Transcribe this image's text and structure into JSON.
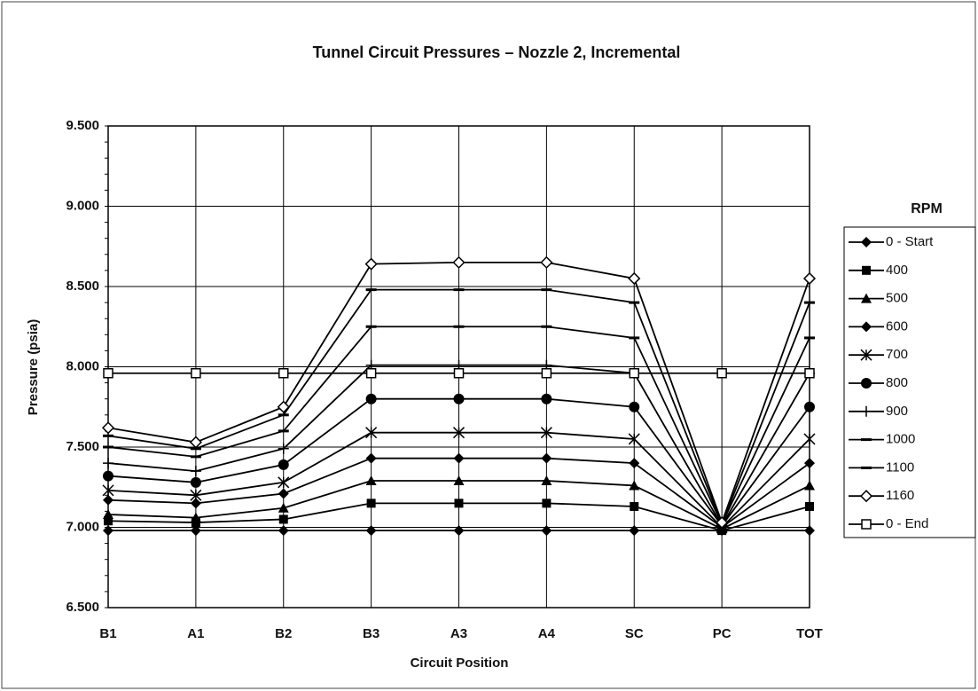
{
  "chart_data": {
    "type": "line",
    "title": "Tunnel Circuit Pressures – Nozzle 2, Incremental",
    "x_label": "Circuit Position",
    "y_label": "Pressure (psia)",
    "legend_title": "RPM",
    "legend": "right",
    "grid": true,
    "categories": [
      "B1",
      "A1",
      "B2",
      "B3",
      "A3",
      "A4",
      "SC",
      "PC",
      "TOT"
    ],
    "ylim": [
      6.5,
      9.5
    ],
    "yticks": [
      {
        "value": 6.5,
        "label": "6.500"
      },
      {
        "value": 7,
        "label": "7.000"
      },
      {
        "value": 7.5,
        "label": "7.500"
      },
      {
        "value": 8,
        "label": "8.000"
      },
      {
        "value": 8.5,
        "label": "8.500"
      },
      {
        "value": 9,
        "label": "9.000"
      },
      {
        "value": 9.5,
        "label": "9.500"
      }
    ],
    "series": [
      {
        "name": "0 - Start",
        "color": "#000000",
        "marker": "diamond",
        "values": [
          6.98,
          6.98,
          6.98,
          6.98,
          6.98,
          6.98,
          6.98,
          6.98,
          6.98
        ]
      },
      {
        "name": "400",
        "color": "#000000",
        "marker": "square",
        "values": [
          7.04,
          7.03,
          7.05,
          7.15,
          7.15,
          7.15,
          7.13,
          6.98,
          7.13
        ]
      },
      {
        "name": "500",
        "color": "#000000",
        "marker": "triangle",
        "values": [
          7.08,
          7.06,
          7.12,
          7.29,
          7.29,
          7.29,
          7.26,
          6.99,
          7.26
        ]
      },
      {
        "name": "600",
        "color": "#000000",
        "marker": "diamond",
        "values": [
          7.17,
          7.15,
          7.21,
          7.43,
          7.43,
          7.43,
          7.4,
          7.0,
          7.4
        ]
      },
      {
        "name": "700",
        "color": "#000000",
        "marker": "star",
        "values": [
          7.23,
          7.2,
          7.28,
          7.59,
          7.59,
          7.59,
          7.55,
          7.0,
          7.55
        ]
      },
      {
        "name": "800",
        "color": "#000000",
        "marker": "circle",
        "values": [
          7.32,
          7.28,
          7.39,
          7.8,
          7.8,
          7.8,
          7.75,
          7.01,
          7.75
        ]
      },
      {
        "name": "900",
        "color": "#000000",
        "marker": "plus",
        "values": [
          7.4,
          7.35,
          7.49,
          8.01,
          8.01,
          8.01,
          7.96,
          7.01,
          7.96
        ]
      },
      {
        "name": "1000",
        "color": "#000000",
        "marker": "dash",
        "values": [
          7.5,
          7.44,
          7.6,
          8.25,
          8.25,
          8.25,
          8.18,
          7.02,
          8.18
        ]
      },
      {
        "name": "1100",
        "color": "#000000",
        "marker": "dash",
        "values": [
          7.57,
          7.49,
          7.7,
          8.48,
          8.48,
          8.48,
          8.4,
          7.02,
          8.4
        ]
      },
      {
        "name": "1160",
        "color": "#000000",
        "marker": "open-diamond",
        "values": [
          7.62,
          7.53,
          7.75,
          8.64,
          8.65,
          8.65,
          8.55,
          7.03,
          8.55
        ]
      },
      {
        "name": "0 - End",
        "color": "#000000",
        "marker": "open-square",
        "values": [
          7.96,
          7.96,
          7.96,
          7.96,
          7.96,
          7.96,
          7.96,
          7.96,
          7.96
        ]
      }
    ]
  }
}
